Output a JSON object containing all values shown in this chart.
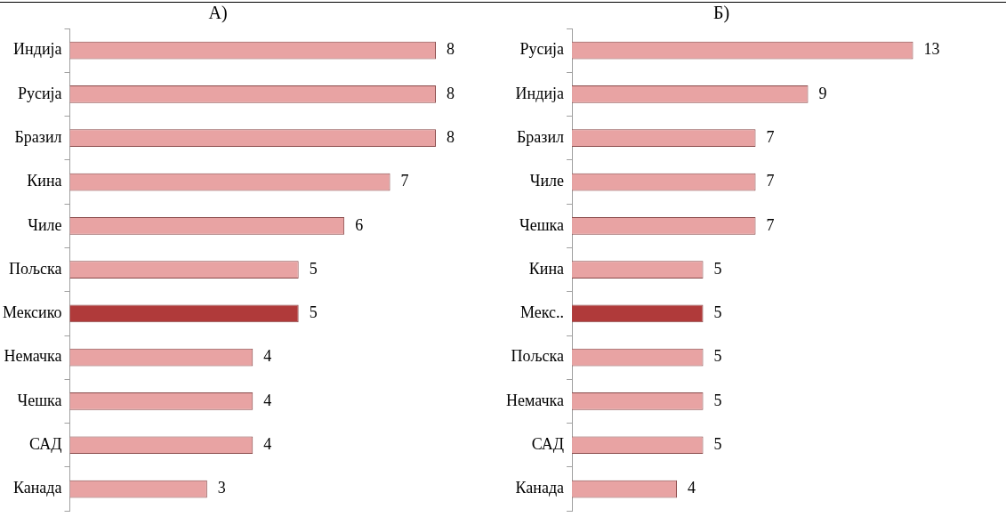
{
  "chart_data": [
    {
      "type": "bar",
      "title": "А)",
      "orientation": "horizontal",
      "categories": [
        "Индија",
        "Русија",
        "Бразил",
        "Кина",
        "Чиле",
        "Пољска",
        "Мексико",
        "Немачка",
        "Чешка",
        "САД",
        "Канада"
      ],
      "values": [
        8,
        8,
        8,
        7,
        6,
        5,
        5,
        4,
        4,
        4,
        3
      ],
      "colors": [
        "#e8a3a3",
        "#e8a3a3",
        "#e8a3a3",
        "#e8a3a3",
        "#e8a3a3",
        "#e8a3a3",
        "#b03a3a",
        "#e8a3a3",
        "#e8a3a3",
        "#e8a3a3",
        "#e8a3a3"
      ],
      "tick_labels": "y",
      "data_labels": true
    },
    {
      "type": "bar",
      "title": "Б)",
      "orientation": "horizontal",
      "categories": [
        "Русија",
        "Индија",
        "Бразил",
        "Чиле",
        "Чешка",
        "Кина",
        "Мекс..",
        "Пољска",
        "Немачка",
        "САД",
        "Канада"
      ],
      "values": [
        13,
        9,
        7,
        7,
        7,
        5,
        5,
        5,
        5,
        5,
        4
      ],
      "colors": [
        "#e8a3a3",
        "#e8a3a3",
        "#e8a3a3",
        "#e8a3a3",
        "#e8a3a3",
        "#e8a3a3",
        "#b03a3a",
        "#e8a3a3",
        "#e8a3a3",
        "#e8a3a3",
        "#e8a3a3"
      ],
      "tick_labels": "y",
      "data_labels": true
    }
  ]
}
